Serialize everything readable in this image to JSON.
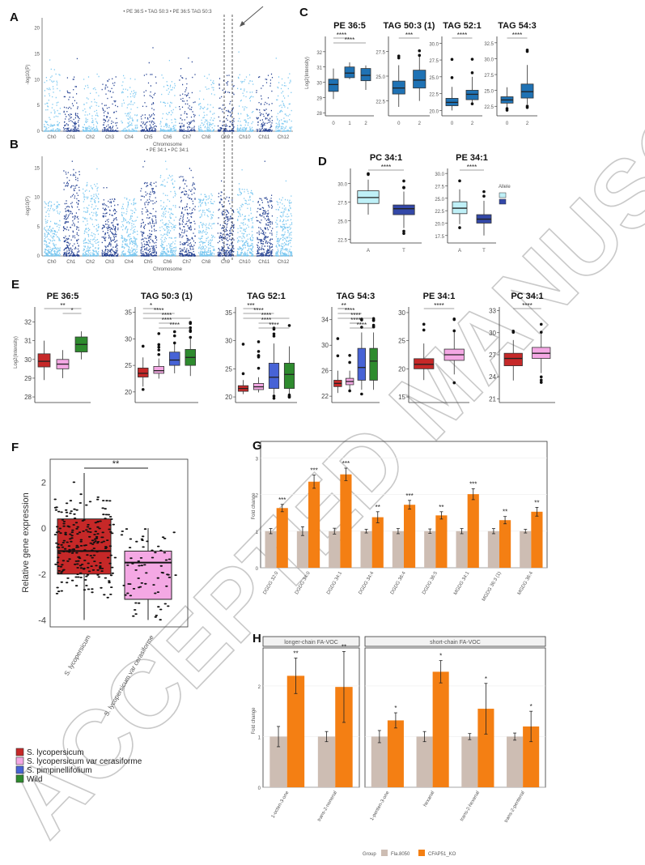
{
  "colors": {
    "lycopersicum": "#c62828",
    "cerasiforme": "#f4a8e4",
    "pimpinellifolium": "#4763d6",
    "wild": "#2e8b2e",
    "acc_A": "#bff0f7",
    "acc_T": "#3348a8",
    "geno": "#1f72b4",
    "fla8050": "#cdbdb3",
    "ko": "#f47f13",
    "manhattan_light": "#6fc3ef",
    "manhattan_dark": "#13328a"
  },
  "watermark": "ACCEPTED MANUSCRIPT",
  "panels": {
    "A": {
      "label": "A",
      "legend": "• PE 36:5  • TAG 50:3  • PE 36:5 TAG 50:3",
      "xlabel": "Chromosome",
      "ylabel": "-log10(P)",
      "yticks": [
        "0",
        "5",
        "10",
        "15",
        "20"
      ],
      "chromosomes": [
        "Ch0",
        "Ch1",
        "Ch2",
        "Ch3",
        "Ch4",
        "Ch5",
        "Ch6",
        "Ch7",
        "Ch8",
        "Ch9",
        "Ch10",
        "Ch11",
        "Ch12"
      ]
    },
    "B": {
      "label": "B",
      "legend": "• PE 34:1  • PC 34:1",
      "xlabel": "Chromosome",
      "ylabel": "-log10(P)",
      "yticks": [
        "0",
        "5",
        "10",
        "15"
      ],
      "chromosomes": [
        "Ch0",
        "Ch1",
        "Ch2",
        "Ch3",
        "Ch4",
        "Ch5",
        "Ch6",
        "Ch7",
        "Ch8",
        "Ch9",
        "Ch10",
        "Ch11",
        "Ch12"
      ]
    },
    "C": {
      "label": "C",
      "ylabel": "Log2(Intensity)"
    },
    "D": {
      "label": "D",
      "legend_title": "Allele"
    },
    "E": {
      "label": "E",
      "ylabel": "Log2(Intensity)"
    },
    "F": {
      "label": "F",
      "ylabel": "Relative gene expression",
      "yticks": [
        "2",
        "0",
        "-2",
        "-4"
      ],
      "sig": "**",
      "categories": [
        "S. lycopersicum",
        "S. lycopersicum var cerasiforme"
      ]
    },
    "G": {
      "label": "G",
      "ylabel": "Fold change",
      "yticks": [
        "0",
        "1",
        "2",
        "3"
      ]
    },
    "H": {
      "label": "H",
      "ylabel": "Fold change",
      "yticks": [
        "0",
        "1",
        "2"
      ],
      "facets": [
        "longer-chain FA-VOC",
        "short-chain FA-VOC"
      ]
    }
  },
  "species_legend": [
    "S. lycopersicum",
    "S. lycopersicum var cerasiforme",
    "S. pimpinellifolium",
    "Wild"
  ],
  "group_legend": {
    "title": "Group",
    "items": [
      "Fla.8050",
      "CFAP51_KO"
    ]
  },
  "chart_data": [
    {
      "type": "scatter",
      "panel": "A",
      "title": "",
      "xlabel": "Chromosome",
      "ylabel": "-log10(P)",
      "ylim": [
        0,
        22
      ],
      "highlight": "dashed region on Ch8/Ch9"
    },
    {
      "type": "scatter",
      "panel": "B",
      "title": "",
      "xlabel": "Chromosome",
      "ylabel": "-log10(P)",
      "ylim": [
        0,
        17
      ]
    },
    {
      "type": "box",
      "panel": "C",
      "ylabel": "Log2(Intensity)",
      "plots": [
        {
          "title": "PE 36:5",
          "ylim": [
            27.8,
            33
          ],
          "yticks": [
            "28",
            "29",
            "30",
            "31",
            "32"
          ],
          "groups": [
            {
              "x": "0",
              "q1": 29.4,
              "median": 29.85,
              "q3": 30.2,
              "lo": 28.9,
              "hi": 30.9
            },
            {
              "x": "1",
              "q1": 30.3,
              "median": 30.6,
              "q3": 31.0,
              "lo": 30.2,
              "hi": 31.3
            },
            {
              "x": "2",
              "q1": 30.1,
              "median": 30.45,
              "q3": 30.9,
              "lo": 29.5,
              "hi": 31.1
            }
          ],
          "sig": [
            {
              "a": 0,
              "b": 1,
              "label": "****"
            },
            {
              "a": 0,
              "b": 2,
              "label": "****"
            }
          ]
        },
        {
          "title": "TAG 50:3 (1)",
          "ylim": [
            21,
            29
          ],
          "yticks": [
            "22.5",
            "25.0",
            "27.5"
          ],
          "groups": [
            {
              "x": "0",
              "q1": 23.2,
              "median": 23.8,
              "q3": 24.5,
              "lo": 21.9,
              "hi": 26.1
            },
            {
              "x": "2",
              "q1": 23.8,
              "median": 24.6,
              "q3": 25.6,
              "lo": 22.5,
              "hi": 27.0
            }
          ],
          "sig": [
            {
              "a": 0,
              "b": 1,
              "label": "***"
            }
          ]
        },
        {
          "title": "TAG 52:1",
          "ylim": [
            19.2,
            31
          ],
          "yticks": [
            "20.0",
            "22.5",
            "25.0",
            "27.5",
            "30.0"
          ],
          "groups": [
            {
              "x": "0",
              "q1": 20.7,
              "median": 21.2,
              "q3": 21.8,
              "lo": 20.0,
              "hi": 23.5
            },
            {
              "x": "2",
              "q1": 21.6,
              "median": 22.4,
              "q3": 23.0,
              "lo": 21.0,
              "hi": 25.0
            }
          ],
          "sig": [
            {
              "a": 0,
              "b": 1,
              "label": "****"
            }
          ]
        },
        {
          "title": "TAG 54:3",
          "ylim": [
            21,
            33.5
          ],
          "yticks": [
            "22.5",
            "25.0",
            "27.5",
            "30.0",
            "32.5"
          ],
          "groups": [
            {
              "x": "0",
              "q1": 23.0,
              "median": 23.5,
              "q3": 24.0,
              "lo": 22.2,
              "hi": 25.5
            },
            {
              "x": "2",
              "q1": 23.8,
              "median": 24.8,
              "q3": 26.0,
              "lo": 22.8,
              "hi": 29.0
            }
          ],
          "sig": [
            {
              "a": 0,
              "b": 1,
              "label": "****"
            }
          ]
        }
      ]
    },
    {
      "type": "box",
      "panel": "D",
      "plots": [
        {
          "title": "PC 34:1",
          "ylim": [
            22,
            32
          ],
          "yticks": [
            "22.5",
            "25.0",
            "27.5",
            "30.0"
          ],
          "groups": [
            {
              "x": "A",
              "q1": 27.3,
              "median": 28.1,
              "q3": 29.0,
              "lo": 25.8,
              "hi": 30.5
            },
            {
              "x": "T",
              "q1": 25.8,
              "median": 26.6,
              "q3": 27.1,
              "lo": 24.0,
              "hi": 28.9
            }
          ],
          "sig": [
            {
              "a": 0,
              "b": 1,
              "label": "****"
            }
          ]
        },
        {
          "title": "PE 34:1",
          "ylim": [
            16,
            31
          ],
          "yticks": [
            "17.5",
            "20.0",
            "22.5",
            "25.0",
            "27.5",
            "30.0"
          ],
          "groups": [
            {
              "x": "A",
              "q1": 21.9,
              "median": 23.0,
              "q3": 24.3,
              "lo": 19.8,
              "hi": 26.8
            },
            {
              "x": "T",
              "q1": 20.0,
              "median": 20.8,
              "q3": 21.7,
              "lo": 17.5,
              "hi": 24.5
            }
          ],
          "sig": [
            {
              "a": 0,
              "b": 1,
              "label": "****"
            }
          ]
        }
      ]
    },
    {
      "type": "box",
      "panel": "E",
      "ylabel": "Log2(Intensity)",
      "plots": [
        {
          "title": "PE 36:5",
          "ylim": [
            27.7,
            32.8
          ],
          "yticks": [
            "28",
            "29",
            "30",
            "31",
            "32"
          ],
          "groups": [
            {
              "q1": 29.6,
              "median": 29.9,
              "q3": 30.3,
              "lo": 28.9,
              "hi": 31.0
            },
            {
              "q1": 29.5,
              "median": 29.75,
              "q3": 30.0,
              "lo": 29.0,
              "hi": 30.5
            },
            {
              "q1": 30.4,
              "median": 30.8,
              "q3": 31.2,
              "lo": 30.0,
              "hi": 31.5
            }
          ],
          "sig": [
            {
              "a": 0,
              "b": 2,
              "label": "**"
            },
            {
              "a": 1,
              "b": 2,
              "label": "*"
            }
          ]
        },
        {
          "title": "TAG 50:3 (1)",
          "ylim": [
            18,
            36
          ],
          "yticks": [
            "20",
            "25",
            "30",
            "35"
          ],
          "groups": [
            {
              "q1": 22.8,
              "median": 23.5,
              "q3": 24.5,
              "lo": 21.0,
              "hi": 26.5
            },
            {
              "q1": 23.5,
              "median": 24.0,
              "q3": 24.8,
              "lo": 22.5,
              "hi": 26.3
            },
            {
              "q1": 25.0,
              "median": 26.0,
              "q3": 27.5,
              "lo": 23.5,
              "hi": 29.0
            },
            {
              "q1": 25.0,
              "median": 26.5,
              "q3": 28.0,
              "lo": 23.0,
              "hi": 30.0
            }
          ],
          "sig": [
            {
              "a": 0,
              "b": 1,
              "label": "*"
            },
            {
              "a": 0,
              "b": 2,
              "label": "****"
            },
            {
              "a": 0,
              "b": 3,
              "label": "****"
            },
            {
              "a": 1,
              "b": 2,
              "label": "****"
            },
            {
              "a": 1,
              "b": 3,
              "label": "****"
            }
          ]
        },
        {
          "title": "TAG 52:1",
          "ylim": [
            19,
            36
          ],
          "yticks": [
            "20",
            "25",
            "30",
            "35"
          ],
          "groups": [
            {
              "q1": 21.0,
              "median": 21.5,
              "q3": 22.0,
              "lo": 20.5,
              "hi": 23.0
            },
            {
              "q1": 21.3,
              "median": 21.8,
              "q3": 22.4,
              "lo": 20.8,
              "hi": 23.5
            },
            {
              "q1": 21.5,
              "median": 23.5,
              "q3": 26.0,
              "lo": 20.5,
              "hi": 29.5
            },
            {
              "q1": 21.5,
              "median": 24.0,
              "q3": 26.0,
              "lo": 20.5,
              "hi": 29.0
            }
          ],
          "sig": [
            {
              "a": 0,
              "b": 1,
              "label": "***"
            },
            {
              "a": 0,
              "b": 2,
              "label": "****"
            },
            {
              "a": 0,
              "b": 3,
              "label": "****"
            },
            {
              "a": 1,
              "b": 2,
              "label": "****"
            },
            {
              "a": 1,
              "b": 3,
              "label": "****"
            }
          ]
        },
        {
          "title": "TAG 54:3",
          "ylim": [
            21,
            36
          ],
          "yticks": [
            "22",
            "26",
            "30",
            "34"
          ],
          "groups": [
            {
              "q1": 23.5,
              "median": 24.0,
              "q3": 24.5,
              "lo": 22.5,
              "hi": 26.0
            },
            {
              "q1": 23.8,
              "median": 24.3,
              "q3": 24.8,
              "lo": 23.0,
              "hi": 26.0
            },
            {
              "q1": 24.5,
              "median": 26.5,
              "q3": 29.5,
              "lo": 23.0,
              "hi": 32.0
            },
            {
              "q1": 24.5,
              "median": 27.5,
              "q3": 29.5,
              "lo": 23.0,
              "hi": 32.0
            }
          ],
          "sig": [
            {
              "a": 0,
              "b": 1,
              "label": "**"
            },
            {
              "a": 0,
              "b": 2,
              "label": "****"
            },
            {
              "a": 0,
              "b": 3,
              "label": "****"
            },
            {
              "a": 1,
              "b": 2,
              "label": "****"
            },
            {
              "a": 1,
              "b": 3,
              "label": "****"
            }
          ]
        },
        {
          "title": "PE 34:1",
          "ylim": [
            14,
            31
          ],
          "yticks": [
            "15",
            "20",
            "25",
            "30"
          ],
          "groups": [
            {
              "q1": 20.0,
              "median": 20.8,
              "q3": 21.8,
              "lo": 18.0,
              "hi": 24.5
            },
            {
              "q1": 21.5,
              "median": 22.5,
              "q3": 23.5,
              "lo": 19.0,
              "hi": 26.5
            }
          ],
          "sig": [
            {
              "a": 0,
              "b": 1,
              "label": "****"
            }
          ]
        },
        {
          "title": "PC 34:1",
          "ylim": [
            20.5,
            33.5
          ],
          "yticks": [
            "21",
            "24",
            "27",
            "30",
            "33"
          ],
          "groups": [
            {
              "q1": 25.5,
              "median": 26.5,
              "q3": 27.2,
              "lo": 23.5,
              "hi": 29.0
            },
            {
              "q1": 26.5,
              "median": 27.2,
              "q3": 28.0,
              "lo": 24.5,
              "hi": 30.0
            }
          ],
          "sig": [
            {
              "a": 0,
              "b": 1,
              "label": "****"
            }
          ]
        }
      ]
    },
    {
      "type": "box",
      "panel": "F",
      "ylabel": "Relative gene expression",
      "ylim": [
        -4.3,
        3.0
      ],
      "categories": [
        "S. lycopersicum",
        "S. lycopersicum var cerasiforme"
      ],
      "groups": [
        {
          "q1": -2.0,
          "median": -1.0,
          "q3": 0.4,
          "lo": -4.0,
          "hi": 2.4
        },
        {
          "q1": -3.1,
          "median": -1.5,
          "q3": -1.0,
          "lo": -4.0,
          "hi": 0.0
        }
      ]
    },
    {
      "type": "bar",
      "panel": "G",
      "ylabel": "Fold change",
      "ylim": [
        0,
        3.45
      ],
      "categories": [
        "DGDG 32:0",
        "DGDG 34:0",
        "DGDG 34:1",
        "DGDG 34:4",
        "DGDG 36:4",
        "DGDG 36:5",
        "MGDG 34:1",
        "MGDG 36:3 (1)",
        "MGDG 36:4"
      ],
      "series": [
        {
          "name": "Fla.8050",
          "values": [
            1,
            1,
            1,
            1,
            1,
            1,
            1,
            1,
            1
          ],
          "err": [
            0.07,
            0.12,
            0.08,
            0.05,
            0.07,
            0.06,
            0.07,
            0.07,
            0.05
          ]
        },
        {
          "name": "CFAP51_KO",
          "values": [
            1.63,
            2.35,
            2.55,
            1.38,
            1.72,
            1.43,
            2.01,
            1.3,
            1.53
          ],
          "err": [
            0.1,
            0.18,
            0.17,
            0.15,
            0.12,
            0.1,
            0.15,
            0.1,
            0.12
          ]
        }
      ],
      "sig": [
        "***",
        "***",
        "***",
        "**",
        "***",
        "**",
        "***",
        "**",
        "**"
      ]
    },
    {
      "type": "bar",
      "panel": "H",
      "ylabel": "Fold change",
      "ylim": [
        0,
        2.75
      ],
      "facets": [
        {
          "title": "longer-chain FA-VOC",
          "categories": [
            "1-octen-3-one",
            "trans-2-nonenal"
          ],
          "ctrl": [
            1,
            1
          ],
          "ctrl_err": [
            0.2,
            0.1
          ],
          "ko": [
            2.2,
            1.98
          ],
          "ko_err": [
            0.35,
            0.7
          ],
          "sig": [
            "**",
            "**"
          ]
        },
        {
          "title": "short-chain FA-VOC",
          "categories": [
            "1-penten-3-one",
            "hexanal",
            "trans-2-hexenal",
            "trans-2-pentenal"
          ],
          "ctrl": [
            1,
            1,
            1,
            1
          ],
          "ctrl_err": [
            0.12,
            0.1,
            0.06,
            0.07
          ],
          "ko": [
            1.32,
            2.28,
            1.55,
            1.2
          ],
          "ko_err": [
            0.15,
            0.22,
            0.5,
            0.3
          ],
          "sig": [
            "*",
            "*",
            "*",
            "*"
          ]
        }
      ]
    }
  ]
}
